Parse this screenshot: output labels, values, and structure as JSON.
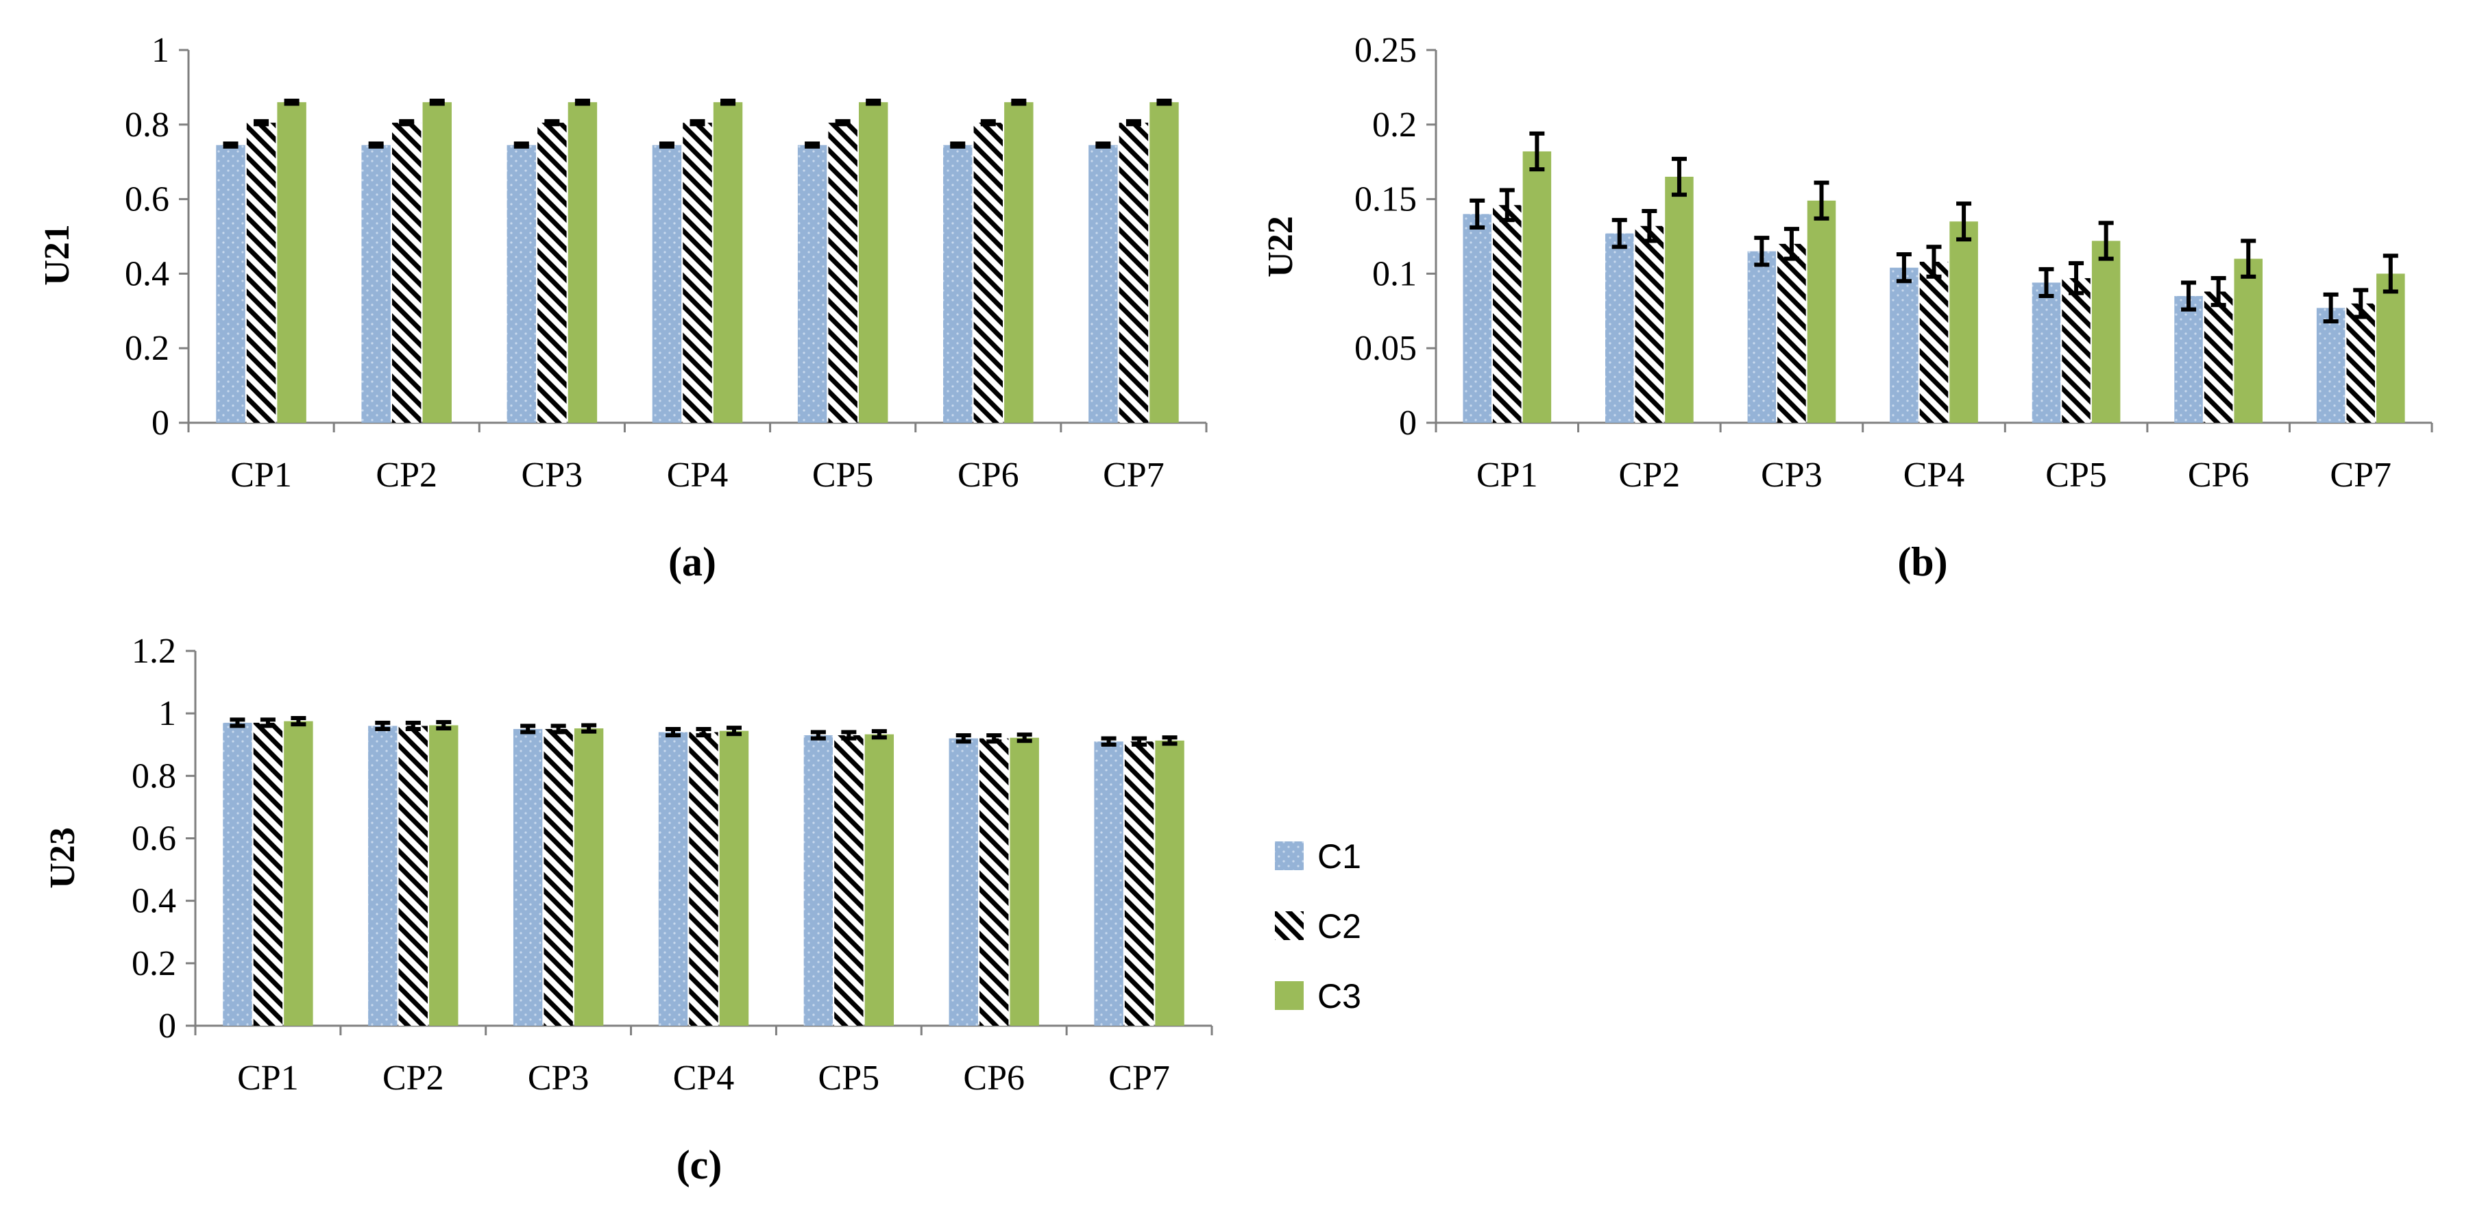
{
  "figure": {
    "legend": [
      {
        "label": "C1",
        "color": "#95B3D7"
      },
      {
        "label": "C2",
        "color": "#000000"
      },
      {
        "label": "C3",
        "color": "#9BBB59"
      }
    ]
  },
  "chart_data": [
    {
      "type": "bar",
      "caption": "(a)",
      "ylabel": "U21",
      "ylim": [
        0,
        1
      ],
      "yticks": [
        "0",
        "0.2",
        "0.4",
        "0.6",
        "0.8",
        "1"
      ],
      "categories": [
        "CP1",
        "CP2",
        "CP3",
        "CP4",
        "CP5",
        "CP6",
        "CP7"
      ],
      "series": [
        {
          "name": "C1",
          "values": [
            0.745,
            0.745,
            0.745,
            0.745,
            0.745,
            0.745,
            0.745
          ],
          "errors": [
            0.004,
            0.004,
            0.004,
            0.004,
            0.004,
            0.004,
            0.004
          ]
        },
        {
          "name": "C2",
          "values": [
            0.805,
            0.805,
            0.805,
            0.805,
            0.805,
            0.805,
            0.805
          ],
          "errors": [
            0.004,
            0.004,
            0.004,
            0.004,
            0.004,
            0.004,
            0.004
          ]
        },
        {
          "name": "C3",
          "values": [
            0.86,
            0.86,
            0.86,
            0.86,
            0.86,
            0.86,
            0.86
          ],
          "errors": [
            0.004,
            0.004,
            0.004,
            0.004,
            0.004,
            0.004,
            0.004
          ]
        }
      ]
    },
    {
      "type": "bar",
      "caption": "(b)",
      "ylabel": "U22",
      "ylim": [
        0,
        0.25
      ],
      "yticks": [
        "0",
        "0.05",
        "0.1",
        "0.15",
        "0.2",
        "0.25"
      ],
      "categories": [
        "CP1",
        "CP2",
        "CP3",
        "CP4",
        "CP5",
        "CP6",
        "CP7"
      ],
      "series": [
        {
          "name": "C1",
          "values": [
            0.14,
            0.127,
            0.115,
            0.104,
            0.094,
            0.085,
            0.077
          ],
          "errors": [
            0.009,
            0.009,
            0.009,
            0.009,
            0.009,
            0.009,
            0.009
          ]
        },
        {
          "name": "C2",
          "values": [
            0.146,
            0.132,
            0.12,
            0.108,
            0.097,
            0.088,
            0.08
          ],
          "errors": [
            0.01,
            0.01,
            0.01,
            0.01,
            0.01,
            0.009,
            0.009
          ]
        },
        {
          "name": "C3",
          "values": [
            0.182,
            0.165,
            0.149,
            0.135,
            0.122,
            0.11,
            0.1
          ],
          "errors": [
            0.012,
            0.012,
            0.012,
            0.012,
            0.012,
            0.012,
            0.012
          ]
        }
      ]
    },
    {
      "type": "bar",
      "caption": "(c)",
      "ylabel": "U23",
      "ylim": [
        0,
        1.2
      ],
      "yticks": [
        "0",
        "0.2",
        "0.4",
        "0.6",
        "0.8",
        "1",
        "1.2"
      ],
      "categories": [
        "CP1",
        "CP2",
        "CP3",
        "CP4",
        "CP5",
        "CP6",
        "CP7"
      ],
      "series": [
        {
          "name": "C1",
          "values": [
            0.97,
            0.96,
            0.95,
            0.94,
            0.93,
            0.92,
            0.91
          ],
          "errors": [
            0.01,
            0.01,
            0.01,
            0.01,
            0.01,
            0.01,
            0.01
          ]
        },
        {
          "name": "C2",
          "values": [
            0.97,
            0.96,
            0.95,
            0.94,
            0.93,
            0.92,
            0.91
          ],
          "errors": [
            0.01,
            0.01,
            0.01,
            0.01,
            0.01,
            0.01,
            0.01
          ]
        },
        {
          "name": "C3",
          "values": [
            0.975,
            0.962,
            0.952,
            0.944,
            0.933,
            0.922,
            0.913
          ],
          "errors": [
            0.01,
            0.01,
            0.01,
            0.01,
            0.01,
            0.01,
            0.01
          ]
        }
      ]
    }
  ]
}
